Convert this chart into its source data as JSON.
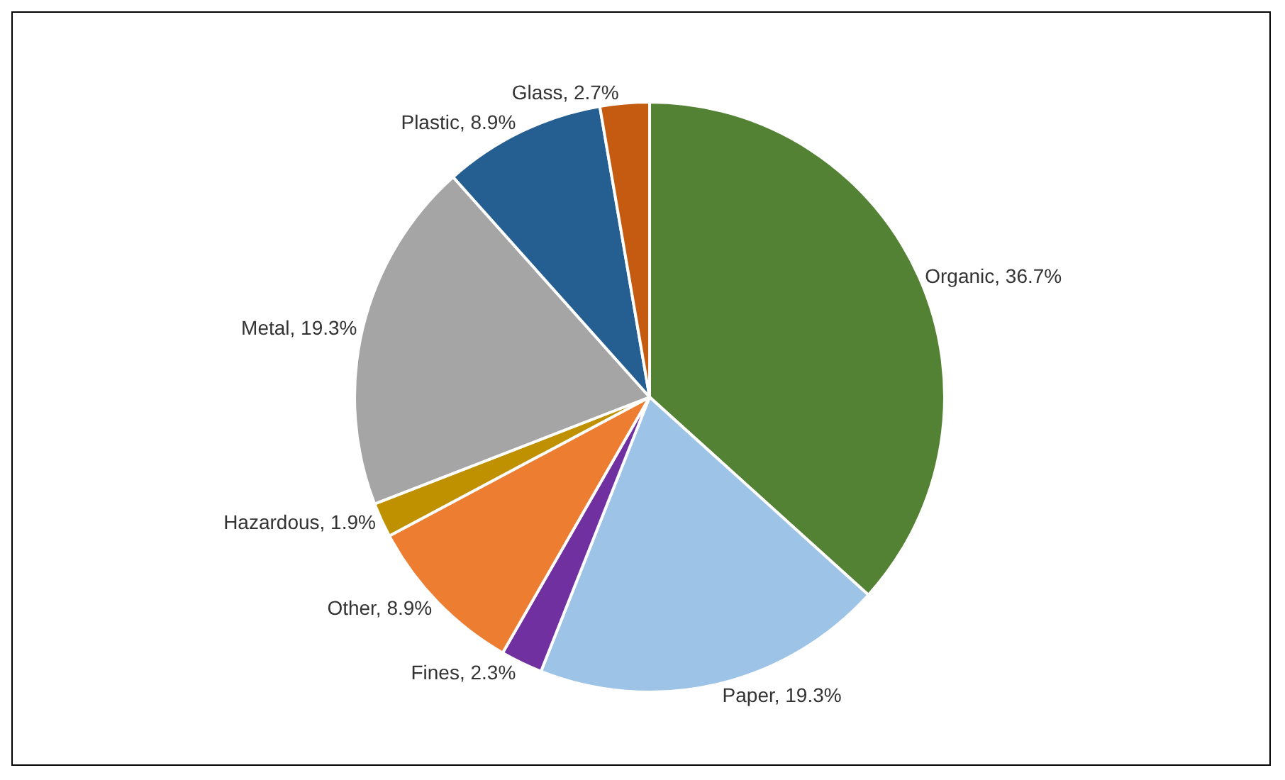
{
  "chart_data": {
    "type": "pie",
    "categories": [
      "Organic",
      "Paper",
      "Fines",
      "Other",
      "Hazardous",
      "Metal",
      "Plastic",
      "Glass"
    ],
    "values": [
      36.7,
      19.3,
      2.3,
      8.9,
      1.9,
      19.3,
      8.9,
      2.7
    ],
    "value_labels": [
      "36.7%",
      "19.3%",
      "2.3%",
      "8.9%",
      "1.9%",
      "19.3%",
      "8.9%",
      "2.7%"
    ],
    "colors": [
      "#548235",
      "#9dc3e6",
      "#7030a0",
      "#ed7d31",
      "#bf9000",
      "#a5a5a5",
      "#255e91",
      "#c55a11"
    ],
    "legend": false
  }
}
